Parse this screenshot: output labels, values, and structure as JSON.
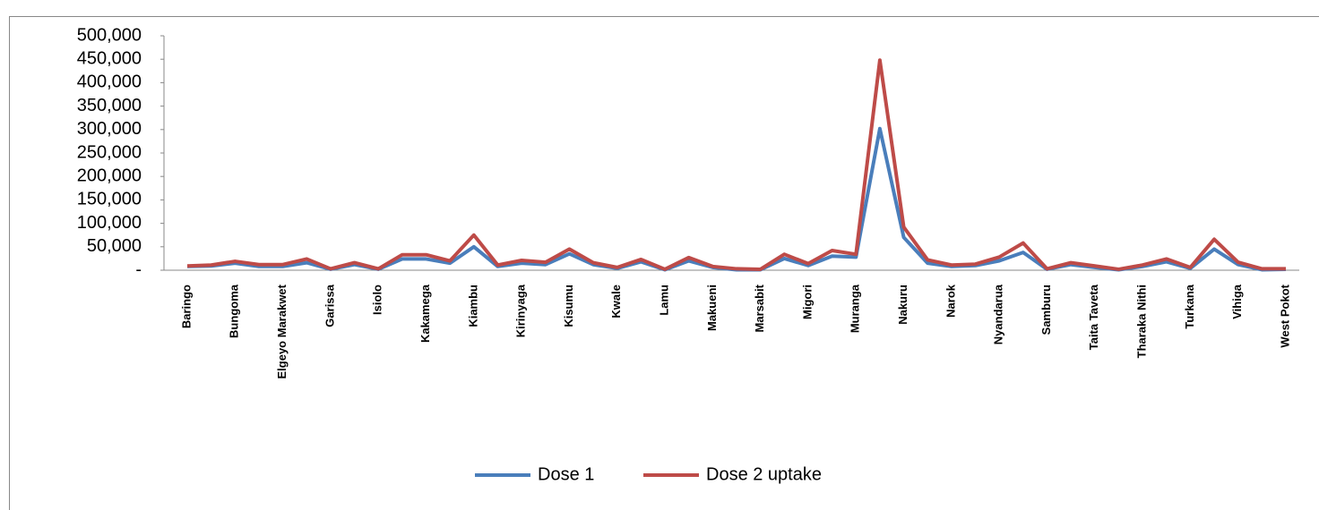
{
  "chart_data": {
    "type": "line",
    "categories": [
      "Baringo",
      null,
      "Bungoma",
      null,
      "Elgeyo Marakwet",
      null,
      "Garissa",
      null,
      "Isiolo",
      null,
      "Kakamega",
      null,
      "Kiambu",
      null,
      "Kirinyaga",
      null,
      "Kisumu",
      null,
      "Kwale",
      null,
      "Lamu",
      null,
      "Makueni",
      null,
      "Marsabit",
      null,
      "Migori",
      null,
      "Muranga",
      null,
      "Nakuru",
      null,
      "Narok",
      null,
      "Nyandarua",
      null,
      "Samburu",
      null,
      "Taita Taveta",
      null,
      "Tharaka Nithi",
      null,
      "Turkana",
      null,
      "Vihiga",
      null,
      "West Pokot"
    ],
    "series": [
      {
        "name": "Dose 1",
        "color": "#4a7ebb",
        "values": [
          8000,
          9000,
          15000,
          8000,
          8000,
          16000,
          2000,
          12000,
          2000,
          24000,
          24000,
          15000,
          50000,
          8000,
          15000,
          12000,
          35000,
          12000,
          4000,
          18000,
          1000,
          20000,
          6000,
          1000,
          1000,
          25000,
          10000,
          30000,
          28000,
          302000,
          70000,
          15000,
          8000,
          10000,
          20000,
          38000,
          2000,
          12000,
          6000,
          1000,
          8000,
          18000,
          4000,
          45000,
          12000,
          1000,
          2000
        ]
      },
      {
        "name": "Dose 2 uptake",
        "color": "#be4b48",
        "values": [
          9000,
          11000,
          19000,
          12000,
          12000,
          24000,
          3000,
          16000,
          3000,
          33000,
          33000,
          20000,
          75000,
          11000,
          21000,
          17000,
          45000,
          16000,
          6000,
          23000,
          2000,
          27000,
          8000,
          3000,
          2000,
          34000,
          14000,
          42000,
          34000,
          448000,
          92000,
          22000,
          11000,
          13000,
          28000,
          58000,
          3000,
          16000,
          9000,
          2000,
          11000,
          24000,
          6000,
          66000,
          17000,
          3000,
          3000
        ]
      }
    ],
    "ylim": [
      0,
      500000
    ],
    "yticks": [
      {
        "value": 0,
        "label": "-"
      },
      {
        "value": 50000,
        "label": "50,000"
      },
      {
        "value": 100000,
        "label": "100,000"
      },
      {
        "value": 150000,
        "label": "150,000"
      },
      {
        "value": 200000,
        "label": "200,000"
      },
      {
        "value": 250000,
        "label": "250,000"
      },
      {
        "value": 300000,
        "label": "300,000"
      },
      {
        "value": 350000,
        "label": "350,000"
      },
      {
        "value": 400000,
        "label": "400,000"
      },
      {
        "value": 450000,
        "label": "450,000"
      },
      {
        "value": 500000,
        "label": "500,000"
      }
    ],
    "grid": false,
    "legend": "bottom"
  }
}
